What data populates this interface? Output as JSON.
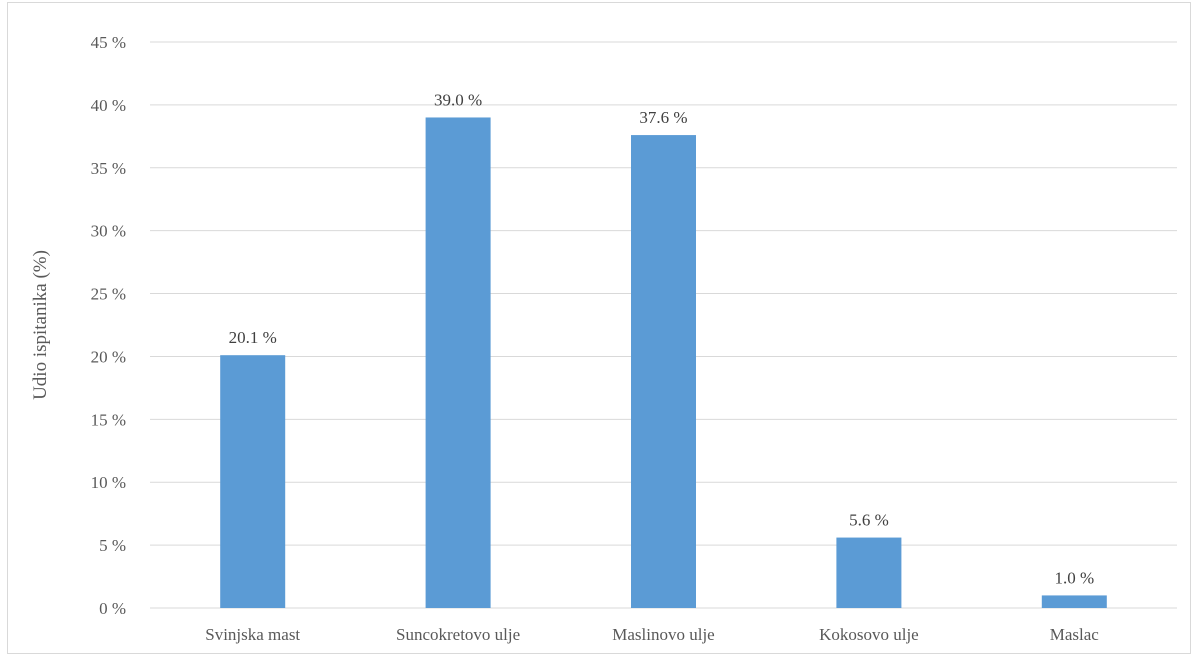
{
  "chart_data": {
    "type": "bar",
    "title": "",
    "xlabel": "",
    "ylabel": "Udio ispitanika (%)",
    "categories": [
      "Svinjska mast",
      "Suncokretovo ulje",
      "Maslinovo ulje",
      "Kokosovo ulje",
      "Maslac"
    ],
    "values": [
      20.1,
      39.0,
      37.6,
      5.6,
      1.0
    ],
    "data_labels": [
      "20.1 %",
      "39.0 %",
      "37.6 %",
      "5.6 %",
      "1.0 %"
    ],
    "ylim": [
      0,
      45
    ],
    "yticks": [
      0,
      5,
      10,
      15,
      20,
      25,
      30,
      35,
      40,
      45
    ],
    "ytick_labels": [
      "0 %",
      "5 %",
      "10 %",
      "15 %",
      "20 %",
      "25 %",
      "30 %",
      "35 %",
      "40 %",
      "45 %"
    ],
    "grid": true,
    "legend": "none",
    "colors": {
      "bar": "#5b9bd5",
      "grid": "#d9d9d9",
      "text": "#595959"
    }
  }
}
